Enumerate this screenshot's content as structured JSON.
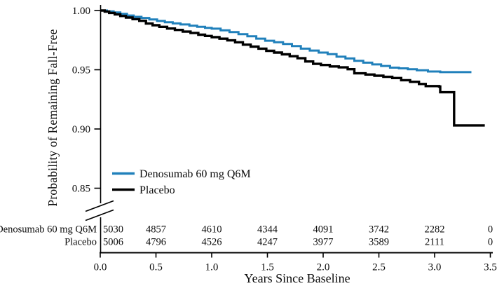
{
  "figure_title": "",
  "risk_table": {
    "rows": [
      {
        "label": "Denosumab 60 mg Q6M",
        "counts": [
          "5030",
          "4857",
          "4610",
          "4344",
          "4091",
          "3742",
          "2282",
          "0"
        ]
      },
      {
        "label": "Placebo",
        "counts": [
          "5006",
          "4796",
          "4526",
          "4247",
          "3977",
          "3589",
          "2111",
          "0"
        ]
      }
    ]
  },
  "chart_data": {
    "type": "line",
    "subtype": "kaplan-meier-step",
    "title": "",
    "xlabel": "Years Since Baseline",
    "ylabel": "Probability of Remaining Fall-Free",
    "xlim": [
      0,
      3.5
    ],
    "ylim": [
      0.85,
      1.0
    ],
    "y_axis_break": true,
    "grid": false,
    "legend_position": "lower-left-inside",
    "x_ticks": [
      0.0,
      0.5,
      1.0,
      1.5,
      2.0,
      2.5,
      3.0,
      3.5
    ],
    "x_tick_labels": [
      "0.0",
      "0.5",
      "1.0",
      "1.5",
      "2.0",
      "2.5",
      "3.0",
      "3.5"
    ],
    "y_ticks": [
      1.0,
      0.95,
      0.9,
      0.85
    ],
    "y_tick_labels": [
      "1.00",
      "0.95",
      "0.90",
      "0.85"
    ],
    "axis_color": "#000000",
    "series": [
      {
        "name": "Denosumab 60 mg Q6M",
        "color": "#2080bb",
        "final_value": 0.948,
        "points": [
          [
            0.0,
            1.0
          ],
          [
            0.06,
            0.9993
          ],
          [
            0.12,
            0.9984
          ],
          [
            0.18,
            0.9972
          ],
          [
            0.24,
            0.9958
          ],
          [
            0.3,
            0.9947
          ],
          [
            0.37,
            0.9937
          ],
          [
            0.44,
            0.9925
          ],
          [
            0.51,
            0.9912
          ],
          [
            0.58,
            0.9901
          ],
          [
            0.65,
            0.9891
          ],
          [
            0.72,
            0.9882
          ],
          [
            0.8,
            0.9872
          ],
          [
            0.87,
            0.9862
          ],
          [
            0.94,
            0.9854
          ],
          [
            1.0,
            0.9847
          ],
          [
            1.08,
            0.9833
          ],
          [
            1.16,
            0.9818
          ],
          [
            1.24,
            0.98
          ],
          [
            1.32,
            0.9782
          ],
          [
            1.4,
            0.9763
          ],
          [
            1.48,
            0.9745
          ],
          [
            1.56,
            0.9732
          ],
          [
            1.64,
            0.9718
          ],
          [
            1.72,
            0.97
          ],
          [
            1.8,
            0.9678
          ],
          [
            1.88,
            0.9662
          ],
          [
            1.96,
            0.9645
          ],
          [
            2.04,
            0.9632
          ],
          [
            2.12,
            0.961
          ],
          [
            2.2,
            0.9595
          ],
          [
            2.28,
            0.9575
          ],
          [
            2.36,
            0.956
          ],
          [
            2.44,
            0.9545
          ],
          [
            2.52,
            0.9532
          ],
          [
            2.6,
            0.9518
          ],
          [
            2.68,
            0.9512
          ],
          [
            2.76,
            0.9505
          ],
          [
            2.84,
            0.9495
          ],
          [
            2.94,
            0.9485
          ],
          [
            3.05,
            0.948
          ],
          [
            3.33,
            0.948
          ]
        ]
      },
      {
        "name": "Placebo",
        "color": "#000000",
        "final_value": 0.903,
        "points": [
          [
            0.0,
            1.0
          ],
          [
            0.04,
            0.9991
          ],
          [
            0.08,
            0.998
          ],
          [
            0.13,
            0.9967
          ],
          [
            0.18,
            0.9954
          ],
          [
            0.23,
            0.9941
          ],
          [
            0.29,
            0.9927
          ],
          [
            0.35,
            0.9913
          ],
          [
            0.41,
            0.989
          ],
          [
            0.47,
            0.9876
          ],
          [
            0.53,
            0.9862
          ],
          [
            0.6,
            0.9848
          ],
          [
            0.67,
            0.9836
          ],
          [
            0.74,
            0.9822
          ],
          [
            0.81,
            0.981
          ],
          [
            0.88,
            0.9796
          ],
          [
            0.94,
            0.9785
          ],
          [
            1.0,
            0.9775
          ],
          [
            1.07,
            0.9762
          ],
          [
            1.14,
            0.9748
          ],
          [
            1.21,
            0.9732
          ],
          [
            1.28,
            0.9712
          ],
          [
            1.35,
            0.9695
          ],
          [
            1.42,
            0.9678
          ],
          [
            1.49,
            0.966
          ],
          [
            1.56,
            0.9645
          ],
          [
            1.63,
            0.963
          ],
          [
            1.7,
            0.9614
          ],
          [
            1.77,
            0.9597
          ],
          [
            1.84,
            0.957
          ],
          [
            1.91,
            0.955
          ],
          [
            1.98,
            0.954
          ],
          [
            2.06,
            0.9528
          ],
          [
            2.14,
            0.952
          ],
          [
            2.22,
            0.9505
          ],
          [
            2.28,
            0.947
          ],
          [
            2.38,
            0.946
          ],
          [
            2.46,
            0.945
          ],
          [
            2.54,
            0.944
          ],
          [
            2.62,
            0.943
          ],
          [
            2.7,
            0.9412
          ],
          [
            2.78,
            0.9398
          ],
          [
            2.86,
            0.938
          ],
          [
            2.92,
            0.9362
          ],
          [
            3.04,
            0.9358
          ],
          [
            3.05,
            0.931
          ],
          [
            3.17,
            0.931
          ],
          [
            3.175,
            0.903
          ],
          [
            3.45,
            0.903
          ]
        ]
      }
    ],
    "number_at_risk": {
      "times": [
        0,
        0.5,
        1.0,
        1.5,
        2.0,
        2.5,
        3.0,
        3.5
      ],
      "rows": [
        {
          "name": "Denosumab 60 mg Q6M",
          "values": [
            5030,
            4857,
            4610,
            4344,
            4091,
            3742,
            2282,
            0
          ]
        },
        {
          "name": "Placebo",
          "values": [
            5006,
            4796,
            4526,
            4247,
            3977,
            3589,
            2111,
            0
          ]
        }
      ]
    }
  }
}
